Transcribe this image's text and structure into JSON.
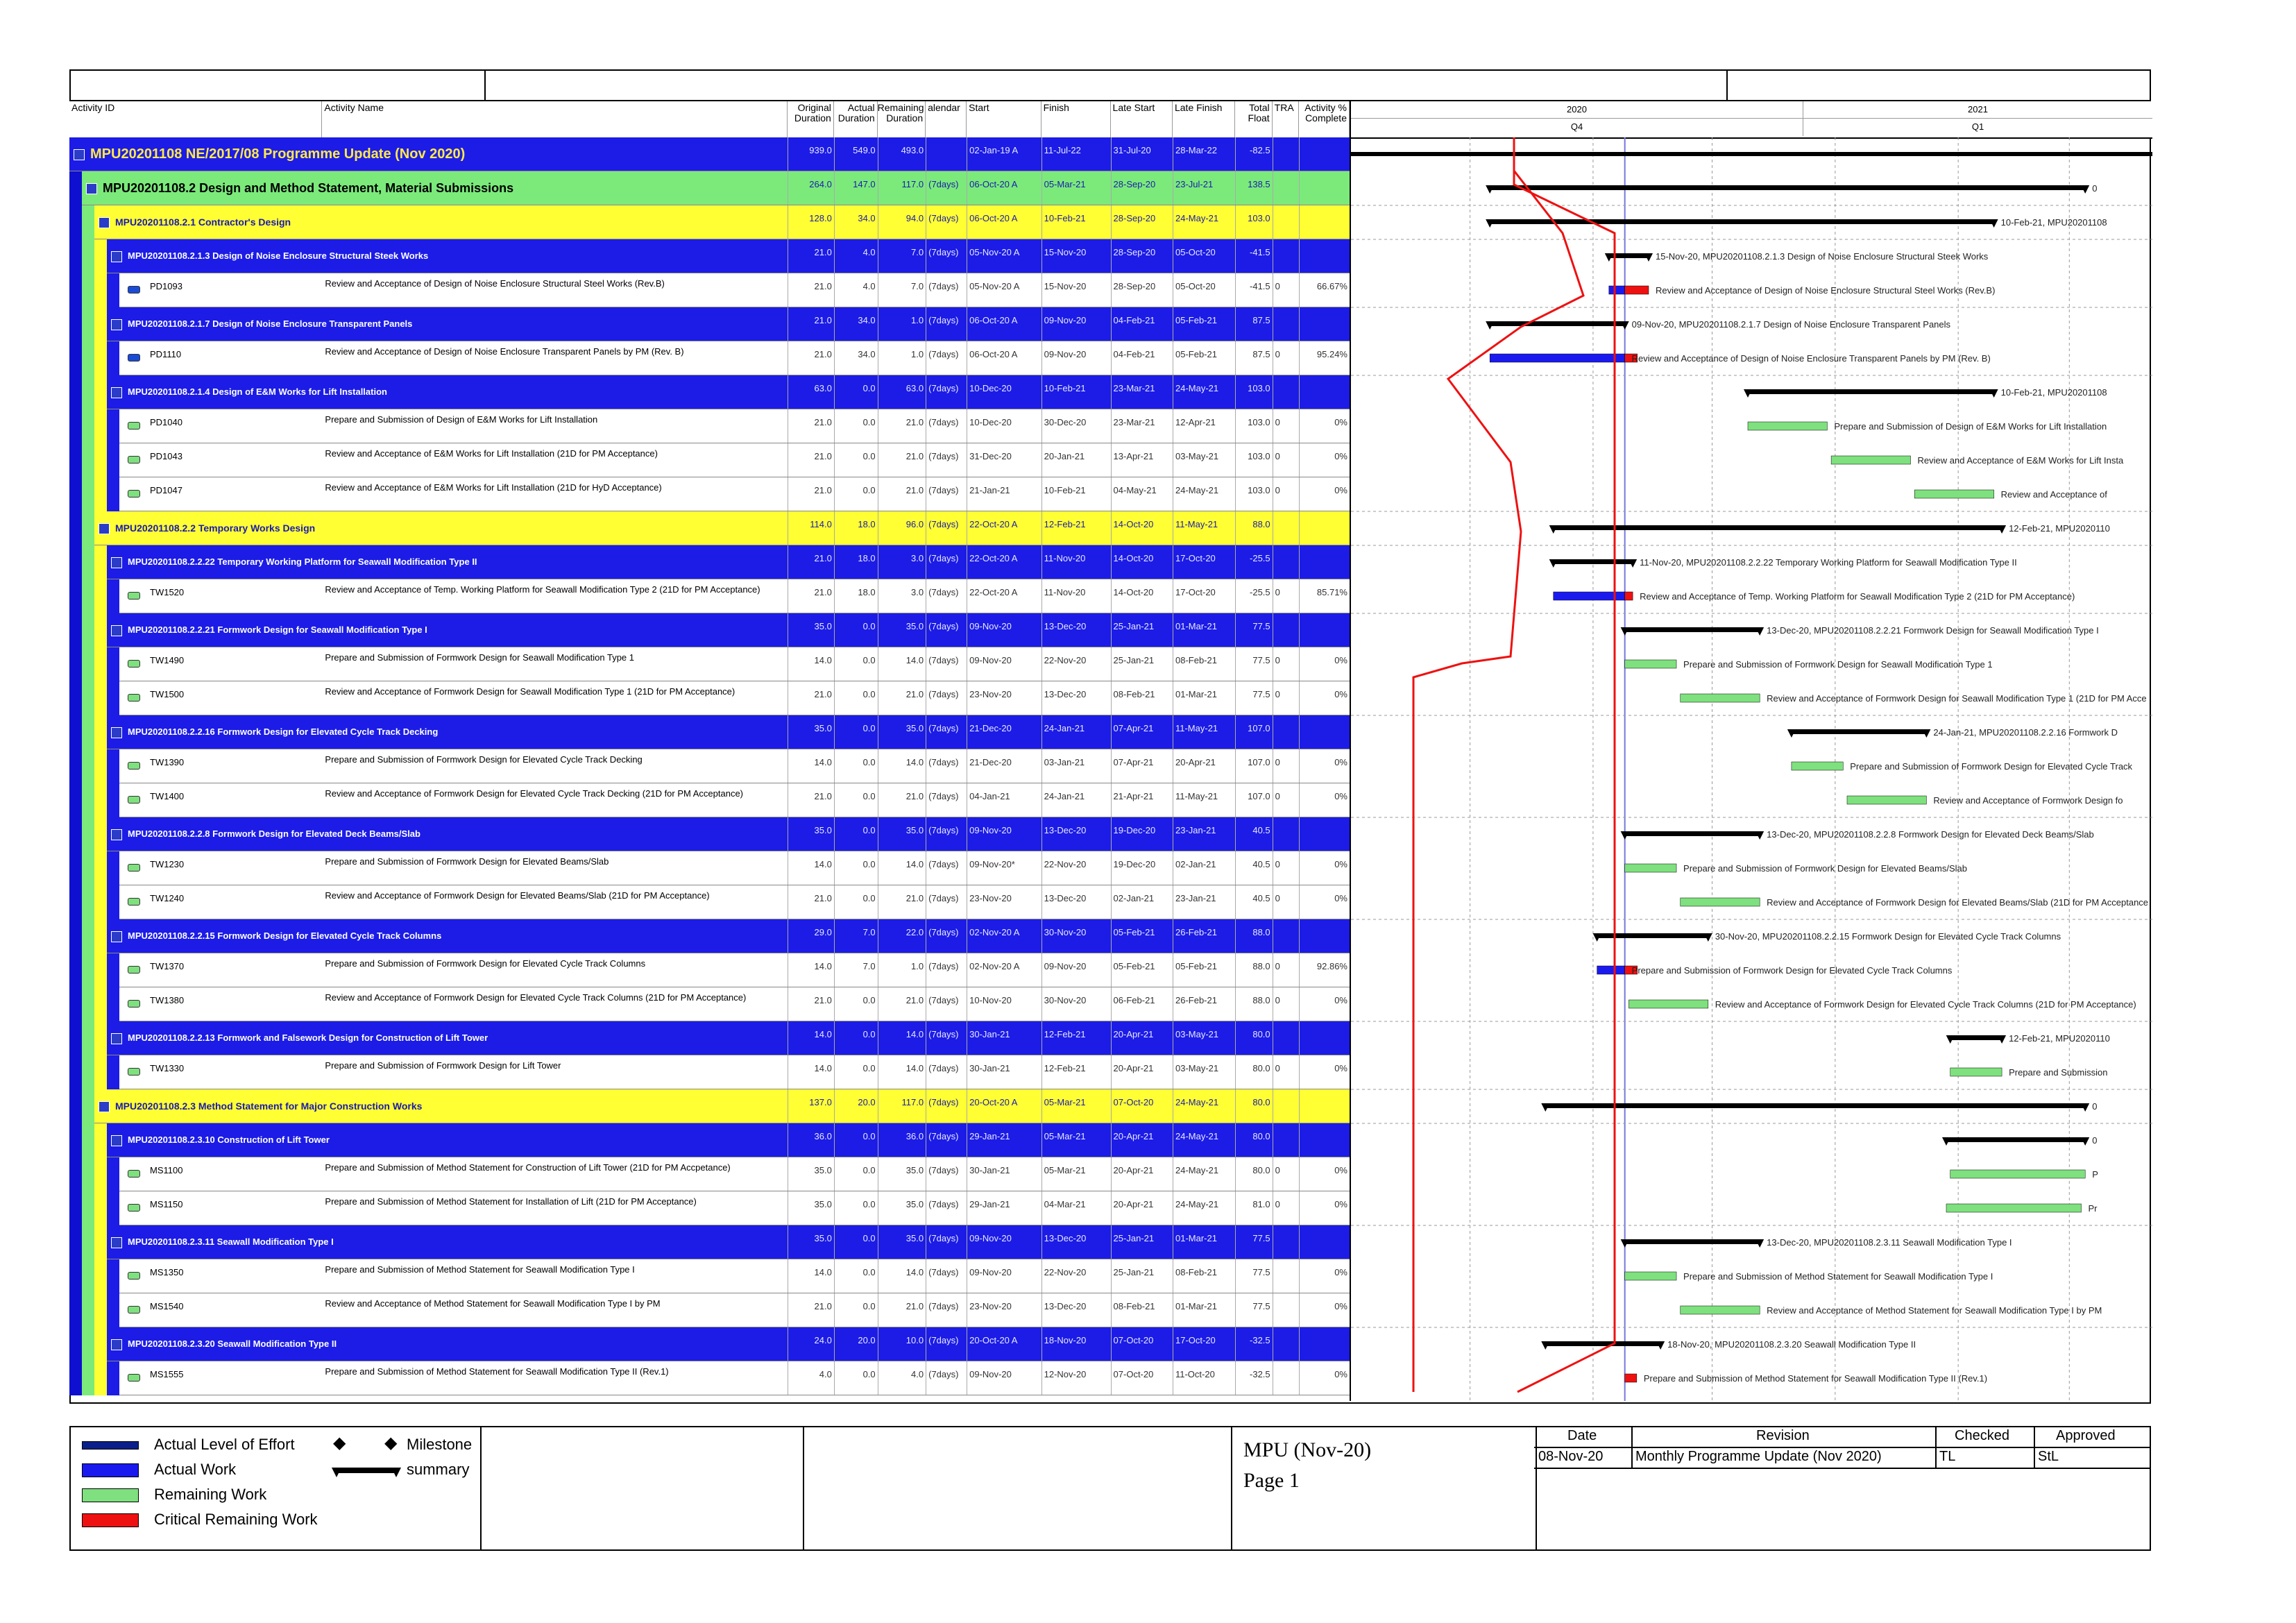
{
  "header": {
    "columns": [
      "Activity ID",
      "Activity Name",
      "Original Duration",
      "Actual Duration",
      "Remaining Duration",
      "alendar",
      "Start",
      "Finish",
      "Late Start",
      "Late Finish",
      "Total Float",
      "TRA",
      "Activity % Complete"
    ],
    "year_2020": "2020",
    "year_2021": "2021",
    "q4": "Q4",
    "q1": "Q1"
  },
  "rows": [
    {
      "level": 0,
      "kind": "proj",
      "id": "MPU20201108  NE/2017/08 Programme Update (Nov 2020)",
      "od": "939.0",
      "ad": "549.0",
      "rd": "493.0",
      "cal": "",
      "start": "02-Jan-19 A",
      "finish": "11-Jul-22",
      "ls": "31-Jul-20",
      "lf": "28-Mar-22",
      "tf": "-82.5",
      "tra": "",
      "pc": ""
    },
    {
      "level": 1,
      "kind": "wbs1",
      "id": "MPU20201108.2  Design and Method Statement, Material Submissions",
      "od": "264.0",
      "ad": "147.0",
      "rd": "117.0",
      "cal": "(7days)",
      "start": "06-Oct-20 A",
      "finish": "05-Mar-21",
      "ls": "28-Sep-20",
      "lf": "23-Jul-21",
      "tf": "138.5",
      "tra": "",
      "pc": ""
    },
    {
      "level": 2,
      "kind": "wbs2",
      "id": "MPU20201108.2.1  Contractor's Design",
      "od": "128.0",
      "ad": "34.0",
      "rd": "94.0",
      "cal": "(7days)",
      "start": "06-Oct-20 A",
      "finish": "10-Feb-21",
      "ls": "28-Sep-20",
      "lf": "24-May-21",
      "tf": "103.0",
      "tra": "",
      "pc": ""
    },
    {
      "level": 3,
      "kind": "wbs3",
      "id": "MPU20201108.2.1.3  Design of Noise Enclosure Structural Steek Works",
      "od": "21.0",
      "ad": "4.0",
      "rd": "7.0",
      "cal": "(7days)",
      "start": "05-Nov-20 A",
      "finish": "15-Nov-20",
      "ls": "28-Sep-20",
      "lf": "05-Oct-20",
      "tf": "-41.5",
      "tra": "",
      "pc": ""
    },
    {
      "level": 4,
      "kind": "task",
      "id": "PD1093",
      "name": "Review and Acceptance of Design of Noise Enclosure Structural Steel Works (Rev.B)",
      "od": "21.0",
      "ad": "4.0",
      "rd": "7.0",
      "cal": "(7days)",
      "start": "05-Nov-20 A",
      "finish": "15-Nov-20",
      "ls": "28-Sep-20",
      "lf": "05-Oct-20",
      "tf": "-41.5",
      "tra": "0",
      "pc": "66.67%",
      "icon": "#1a4bd6"
    },
    {
      "level": 3,
      "kind": "wbs3",
      "id": "MPU20201108.2.1.7  Design of Noise Enclosure Transparent Panels",
      "od": "21.0",
      "ad": "34.0",
      "rd": "1.0",
      "cal": "(7days)",
      "start": "06-Oct-20 A",
      "finish": "09-Nov-20",
      "ls": "04-Feb-21",
      "lf": "05-Feb-21",
      "tf": "87.5",
      "tra": "",
      "pc": ""
    },
    {
      "level": 4,
      "kind": "task",
      "id": "PD1110",
      "name": "Review and Acceptance of Design of Noise Enclosure Transparent Panels by PM (Rev. B)",
      "od": "21.0",
      "ad": "34.0",
      "rd": "1.0",
      "cal": "(7days)",
      "start": "06-Oct-20 A",
      "finish": "09-Nov-20",
      "ls": "04-Feb-21",
      "lf": "05-Feb-21",
      "tf": "87.5",
      "tra": "0",
      "pc": "95.24%",
      "icon": "#1a4bd6"
    },
    {
      "level": 3,
      "kind": "wbs3",
      "id": "MPU20201108.2.1.4  Design of E&M Works for Lift Installation",
      "od": "63.0",
      "ad": "0.0",
      "rd": "63.0",
      "cal": "(7days)",
      "start": "10-Dec-20",
      "finish": "10-Feb-21",
      "ls": "23-Mar-21",
      "lf": "24-May-21",
      "tf": "103.0",
      "tra": "",
      "pc": ""
    },
    {
      "level": 4,
      "kind": "task",
      "id": "PD1040",
      "name": "Prepare and Submission of Design of E&M Works for Lift Installation",
      "od": "21.0",
      "ad": "0.0",
      "rd": "21.0",
      "cal": "(7days)",
      "start": "10-Dec-20",
      "finish": "30-Dec-20",
      "ls": "23-Mar-21",
      "lf": "12-Apr-21",
      "tf": "103.0",
      "tra": "0",
      "pc": "0%",
      "icon": "#7ee07e"
    },
    {
      "level": 4,
      "kind": "task",
      "id": "PD1043",
      "name": "Review and Acceptance of E&M Works for Lift Installation (21D for PM Acceptance)",
      "od": "21.0",
      "ad": "0.0",
      "rd": "21.0",
      "cal": "(7days)",
      "start": "31-Dec-20",
      "finish": "20-Jan-21",
      "ls": "13-Apr-21",
      "lf": "03-May-21",
      "tf": "103.0",
      "tra": "0",
      "pc": "0%",
      "icon": "#7ee07e"
    },
    {
      "level": 4,
      "kind": "task",
      "id": "PD1047",
      "name": "Review and Acceptance of E&M Works for Lift Installation (21D for HyD Acceptance)",
      "od": "21.0",
      "ad": "0.0",
      "rd": "21.0",
      "cal": "(7days)",
      "start": "21-Jan-21",
      "finish": "10-Feb-21",
      "ls": "04-May-21",
      "lf": "24-May-21",
      "tf": "103.0",
      "tra": "0",
      "pc": "0%",
      "icon": "#7ee07e"
    },
    {
      "level": 2,
      "kind": "wbs2",
      "id": "MPU20201108.2.2  Temporary Works Design",
      "od": "114.0",
      "ad": "18.0",
      "rd": "96.0",
      "cal": "(7days)",
      "start": "22-Oct-20 A",
      "finish": "12-Feb-21",
      "ls": "14-Oct-20",
      "lf": "11-May-21",
      "tf": "88.0",
      "tra": "",
      "pc": ""
    },
    {
      "level": 3,
      "kind": "wbs3",
      "id": "MPU20201108.2.2.22  Temporary Working Platform for Seawall Modification Type II",
      "od": "21.0",
      "ad": "18.0",
      "rd": "3.0",
      "cal": "(7days)",
      "start": "22-Oct-20 A",
      "finish": "11-Nov-20",
      "ls": "14-Oct-20",
      "lf": "17-Oct-20",
      "tf": "-25.5",
      "tra": "",
      "pc": ""
    },
    {
      "level": 4,
      "kind": "task",
      "id": "TW1520",
      "name": "Review and Acceptance of Temp. Working Platform for Seawall Modification Type 2 (21D for PM Acceptance)",
      "od": "21.0",
      "ad": "18.0",
      "rd": "3.0",
      "cal": "(7days)",
      "start": "22-Oct-20 A",
      "finish": "11-Nov-20",
      "ls": "14-Oct-20",
      "lf": "17-Oct-20",
      "tf": "-25.5",
      "tra": "0",
      "pc": "85.71%",
      "icon": "#7ee07e"
    },
    {
      "level": 3,
      "kind": "wbs3",
      "id": "MPU20201108.2.2.21  Formwork Design for Seawall Modification Type I",
      "od": "35.0",
      "ad": "0.0",
      "rd": "35.0",
      "cal": "(7days)",
      "start": "09-Nov-20",
      "finish": "13-Dec-20",
      "ls": "25-Jan-21",
      "lf": "01-Mar-21",
      "tf": "77.5",
      "tra": "",
      "pc": ""
    },
    {
      "level": 4,
      "kind": "task",
      "id": "TW1490",
      "name": "Prepare and Submission of Formwork Design for Seawall Modification Type 1",
      "od": "14.0",
      "ad": "0.0",
      "rd": "14.0",
      "cal": "(7days)",
      "start": "09-Nov-20",
      "finish": "22-Nov-20",
      "ls": "25-Jan-21",
      "lf": "08-Feb-21",
      "tf": "77.5",
      "tra": "0",
      "pc": "0%",
      "icon": "#7ee07e"
    },
    {
      "level": 4,
      "kind": "task",
      "id": "TW1500",
      "name": "Review and Acceptance of Formwork Design for Seawall Modification Type 1 (21D for PM Acceptance)",
      "od": "21.0",
      "ad": "0.0",
      "rd": "21.0",
      "cal": "(7days)",
      "start": "23-Nov-20",
      "finish": "13-Dec-20",
      "ls": "08-Feb-21",
      "lf": "01-Mar-21",
      "tf": "77.5",
      "tra": "0",
      "pc": "0%",
      "icon": "#7ee07e"
    },
    {
      "level": 3,
      "kind": "wbs3",
      "id": "MPU20201108.2.2.16  Formwork Design for Elevated Cycle Track Decking",
      "od": "35.0",
      "ad": "0.0",
      "rd": "35.0",
      "cal": "(7days)",
      "start": "21-Dec-20",
      "finish": "24-Jan-21",
      "ls": "07-Apr-21",
      "lf": "11-May-21",
      "tf": "107.0",
      "tra": "",
      "pc": ""
    },
    {
      "level": 4,
      "kind": "task",
      "id": "TW1390",
      "name": "Prepare and Submission of Formwork Design for Elevated Cycle Track Decking",
      "od": "14.0",
      "ad": "0.0",
      "rd": "14.0",
      "cal": "(7days)",
      "start": "21-Dec-20",
      "finish": "03-Jan-21",
      "ls": "07-Apr-21",
      "lf": "20-Apr-21",
      "tf": "107.0",
      "tra": "0",
      "pc": "0%",
      "icon": "#7ee07e"
    },
    {
      "level": 4,
      "kind": "task",
      "id": "TW1400",
      "name": "Review and Acceptance of Formwork Design for Elevated Cycle Track Decking (21D for PM Acceptance)",
      "od": "21.0",
      "ad": "0.0",
      "rd": "21.0",
      "cal": "(7days)",
      "start": "04-Jan-21",
      "finish": "24-Jan-21",
      "ls": "21-Apr-21",
      "lf": "11-May-21",
      "tf": "107.0",
      "tra": "0",
      "pc": "0%",
      "icon": "#7ee07e"
    },
    {
      "level": 3,
      "kind": "wbs3",
      "id": "MPU20201108.2.2.8  Formwork Design for Elevated Deck Beams/Slab",
      "od": "35.0",
      "ad": "0.0",
      "rd": "35.0",
      "cal": "(7days)",
      "start": "09-Nov-20",
      "finish": "13-Dec-20",
      "ls": "19-Dec-20",
      "lf": "23-Jan-21",
      "tf": "40.5",
      "tra": "",
      "pc": ""
    },
    {
      "level": 4,
      "kind": "task",
      "id": "TW1230",
      "name": "Prepare and Submission of Formwork Design for Elevated Beams/Slab",
      "od": "14.0",
      "ad": "0.0",
      "rd": "14.0",
      "cal": "(7days)",
      "start": "09-Nov-20*",
      "finish": "22-Nov-20",
      "ls": "19-Dec-20",
      "lf": "02-Jan-21",
      "tf": "40.5",
      "tra": "0",
      "pc": "0%",
      "icon": "#7ee07e"
    },
    {
      "level": 4,
      "kind": "task",
      "id": "TW1240",
      "name": "Review and Acceptance of Formwork Design for Elevated Beams/Slab (21D for PM Acceptance)",
      "od": "21.0",
      "ad": "0.0",
      "rd": "21.0",
      "cal": "(7days)",
      "start": "23-Nov-20",
      "finish": "13-Dec-20",
      "ls": "02-Jan-21",
      "lf": "23-Jan-21",
      "tf": "40.5",
      "tra": "0",
      "pc": "0%",
      "icon": "#7ee07e"
    },
    {
      "level": 3,
      "kind": "wbs3",
      "id": "MPU20201108.2.2.15  Formwork Design for Elevated Cycle Track Columns",
      "od": "29.0",
      "ad": "7.0",
      "rd": "22.0",
      "cal": "(7days)",
      "start": "02-Nov-20 A",
      "finish": "30-Nov-20",
      "ls": "05-Feb-21",
      "lf": "26-Feb-21",
      "tf": "88.0",
      "tra": "",
      "pc": ""
    },
    {
      "level": 4,
      "kind": "task",
      "id": "TW1370",
      "name": "Prepare and Submission of Formwork Design for Elevated Cycle Track Columns",
      "od": "14.0",
      "ad": "7.0",
      "rd": "1.0",
      "cal": "(7days)",
      "start": "02-Nov-20 A",
      "finish": "09-Nov-20",
      "ls": "05-Feb-21",
      "lf": "05-Feb-21",
      "tf": "88.0",
      "tra": "0",
      "pc": "92.86%",
      "icon": "#7ee07e"
    },
    {
      "level": 4,
      "kind": "task",
      "id": "TW1380",
      "name": "Review and Acceptance of Formwork Design for Elevated Cycle Track Columns (21D for PM Acceptance)",
      "od": "21.0",
      "ad": "0.0",
      "rd": "21.0",
      "cal": "(7days)",
      "start": "10-Nov-20",
      "finish": "30-Nov-20",
      "ls": "06-Feb-21",
      "lf": "26-Feb-21",
      "tf": "88.0",
      "tra": "0",
      "pc": "0%",
      "icon": "#7ee07e"
    },
    {
      "level": 3,
      "kind": "wbs3",
      "id": "MPU20201108.2.2.13  Formwork and Falsework Design for Construction of Lift Tower",
      "od": "14.0",
      "ad": "0.0",
      "rd": "14.0",
      "cal": "(7days)",
      "start": "30-Jan-21",
      "finish": "12-Feb-21",
      "ls": "20-Apr-21",
      "lf": "03-May-21",
      "tf": "80.0",
      "tra": "",
      "pc": ""
    },
    {
      "level": 4,
      "kind": "task",
      "id": "TW1330",
      "name": "Prepare and Submission of Formwork Design for Lift Tower",
      "od": "14.0",
      "ad": "0.0",
      "rd": "14.0",
      "cal": "(7days)",
      "start": "30-Jan-21",
      "finish": "12-Feb-21",
      "ls": "20-Apr-21",
      "lf": "03-May-21",
      "tf": "80.0",
      "tra": "0",
      "pc": "0%",
      "icon": "#7ee07e"
    },
    {
      "level": 2,
      "kind": "wbs2",
      "id": "MPU20201108.2.3  Method Statement for Major Construction Works",
      "od": "137.0",
      "ad": "20.0",
      "rd": "117.0",
      "cal": "(7days)",
      "start": "20-Oct-20 A",
      "finish": "05-Mar-21",
      "ls": "07-Oct-20",
      "lf": "24-May-21",
      "tf": "80.0",
      "tra": "",
      "pc": ""
    },
    {
      "level": 3,
      "kind": "wbs3",
      "id": "MPU20201108.2.3.10  Construction of Lift Tower",
      "od": "36.0",
      "ad": "0.0",
      "rd": "36.0",
      "cal": "(7days)",
      "start": "29-Jan-21",
      "finish": "05-Mar-21",
      "ls": "20-Apr-21",
      "lf": "24-May-21",
      "tf": "80.0",
      "tra": "",
      "pc": ""
    },
    {
      "level": 4,
      "kind": "task",
      "id": "MS1100",
      "name": "Prepare and Submission of Method Statement for Construction of Lift Tower (21D for PM Accpetance)",
      "od": "35.0",
      "ad": "0.0",
      "rd": "35.0",
      "cal": "(7days)",
      "start": "30-Jan-21",
      "finish": "05-Mar-21",
      "ls": "20-Apr-21",
      "lf": "24-May-21",
      "tf": "80.0",
      "tra": "0",
      "pc": "0%",
      "icon": "#7ee07e"
    },
    {
      "level": 4,
      "kind": "task",
      "id": "MS1150",
      "name": "Prepare and Submission of Method Statement for Installation of Lift (21D for PM Acceptance)",
      "od": "35.0",
      "ad": "0.0",
      "rd": "35.0",
      "cal": "(7days)",
      "start": "29-Jan-21",
      "finish": "04-Mar-21",
      "ls": "20-Apr-21",
      "lf": "24-May-21",
      "tf": "81.0",
      "tra": "0",
      "pc": "0%",
      "icon": "#7ee07e"
    },
    {
      "level": 3,
      "kind": "wbs3",
      "id": "MPU20201108.2.3.11  Seawall Modification Type I",
      "od": "35.0",
      "ad": "0.0",
      "rd": "35.0",
      "cal": "(7days)",
      "start": "09-Nov-20",
      "finish": "13-Dec-20",
      "ls": "25-Jan-21",
      "lf": "01-Mar-21",
      "tf": "77.5",
      "tra": "",
      "pc": ""
    },
    {
      "level": 4,
      "kind": "task",
      "id": "MS1350",
      "name": "Prepare and Submission of Method Statement for Seawall Modification Type I",
      "od": "14.0",
      "ad": "0.0",
      "rd": "14.0",
      "cal": "(7days)",
      "start": "09-Nov-20",
      "finish": "22-Nov-20",
      "ls": "25-Jan-21",
      "lf": "08-Feb-21",
      "tf": "77.5",
      "tra": "",
      "pc": "0%",
      "icon": "#7ee07e"
    },
    {
      "level": 4,
      "kind": "task",
      "id": "MS1540",
      "name": "Review and Acceptance of Method Statement for Seawall Modification Type I by PM",
      "od": "21.0",
      "ad": "0.0",
      "rd": "21.0",
      "cal": "(7days)",
      "start": "23-Nov-20",
      "finish": "13-Dec-20",
      "ls": "08-Feb-21",
      "lf": "01-Mar-21",
      "tf": "77.5",
      "tra": "",
      "pc": "0%",
      "icon": "#7ee07e"
    },
    {
      "level": 3,
      "kind": "wbs3",
      "id": "MPU20201108.2.3.20  Seawall Modification Type II",
      "od": "24.0",
      "ad": "20.0",
      "rd": "10.0",
      "cal": "(7days)",
      "start": "20-Oct-20 A",
      "finish": "18-Nov-20",
      "ls": "07-Oct-20",
      "lf": "17-Oct-20",
      "tf": "-32.5",
      "tra": "",
      "pc": ""
    },
    {
      "level": 4,
      "kind": "task",
      "id": "MS1555",
      "name": "Prepare and Submission of Method Statement for Seawall Modification Type II (Rev.1)",
      "od": "4.0",
      "ad": "0.0",
      "rd": "4.0",
      "cal": "(7days)",
      "start": "09-Nov-20",
      "finish": "12-Nov-20",
      "ls": "07-Oct-20",
      "lf": "11-Oct-20",
      "tf": "-32.5",
      "tra": "",
      "pc": "0%",
      "icon": "#7ee07e"
    }
  ],
  "gantt_labels": [
    "0",
    "10-Feb-21, MPU20201108",
    "15-Nov-20, MPU20201108.2.1.3  Design of Noise Enclosure Structural Steek Works",
    "Review and Acceptance of Design of Noise Enclosure Structural Steel Works (Rev.B)",
    "09-Nov-20, MPU20201108.2.1.7  Design of Noise Enclosure Transparent Panels",
    "Review and Acceptance of Design of Noise Enclosure Transparent Panels by PM (Rev. B)",
    "10-Feb-21, MPU20201108",
    "Prepare and Submission of Design of E&M Works for Lift Installation",
    "Review and Acceptance of E&M Works for Lift Insta",
    "Review and Acceptance of",
    "12-Feb-21, MPU2020110",
    "11-Nov-20, MPU20201108.2.2.22  Temporary Working Platform for Seawall Modification Type II",
    "Review and Acceptance of Temp. Working Platform for Seawall Modification Type 2 (21D for PM Acceptance)",
    "13-Dec-20, MPU20201108.2.2.21  Formwork Design for Seawall Modification Type I",
    "Prepare and Submission of Formwork Design for Seawall Modification Type 1",
    "Review and Acceptance of Formwork Design for Seawall Modification Type 1 (21D for PM Acce",
    "24-Jan-21, MPU20201108.2.2.16  Formwork D",
    "Prepare and Submission of Formwork Design for Elevated Cycle Track",
    "Review and Acceptance of Formwork Design fo",
    "13-Dec-20, MPU20201108.2.2.8  Formwork Design for Elevated Deck Beams/Slab",
    "Prepare and Submission of Formwork Design for Elevated Beams/Slab",
    "Review and Acceptance of Formwork Design for Elevated Beams/Slab (21D for PM Acceptance",
    "30-Nov-20, MPU20201108.2.2.15  Formwork Design for Elevated Cycle Track Columns",
    "Prepare and Submission of Formwork Design for Elevated Cycle Track Columns",
    "Review and Acceptance of Formwork Design for Elevated Cycle Track Columns (21D for PM Acceptance)",
    "12-Feb-21, MPU2020110",
    "Prepare and Submission",
    "0",
    "0",
    "P",
    "Pr",
    "13-Dec-20, MPU20201108.2.3.11  Seawall Modification Type I",
    "Prepare and Submission of Method Statement for Seawall Modification Type I",
    "Review and Acceptance of Method Statement for Seawall Modification Type I by PM",
    "18-Nov-20, MPU20201108.2.3.20  Seawall Modification Type II",
    "Prepare and Submission of Method Statement for Seawall Modification Type II (Rev.1)"
  ],
  "legend": {
    "actual_loe": "Actual Level of Effort",
    "actual_work": "Actual Work",
    "remaining_work": "Remaining Work",
    "critical_remaining": "Critical Remaining Work",
    "milestone": "Milestone",
    "summary": "summary",
    "colors": {
      "loe": "#0b1f8a",
      "actual": "#1a1aee",
      "remaining": "#7ee07e",
      "critical": "#ee1111"
    }
  },
  "footer": {
    "title": "MPU (Nov-20)",
    "page": "Page 1",
    "rev_headers": [
      "Date",
      "Revision",
      "Checked",
      "Approved"
    ],
    "rev_row": [
      "08-Nov-20",
      "Monthly Programme Update (Nov 2020)",
      "TL",
      "StL"
    ]
  }
}
